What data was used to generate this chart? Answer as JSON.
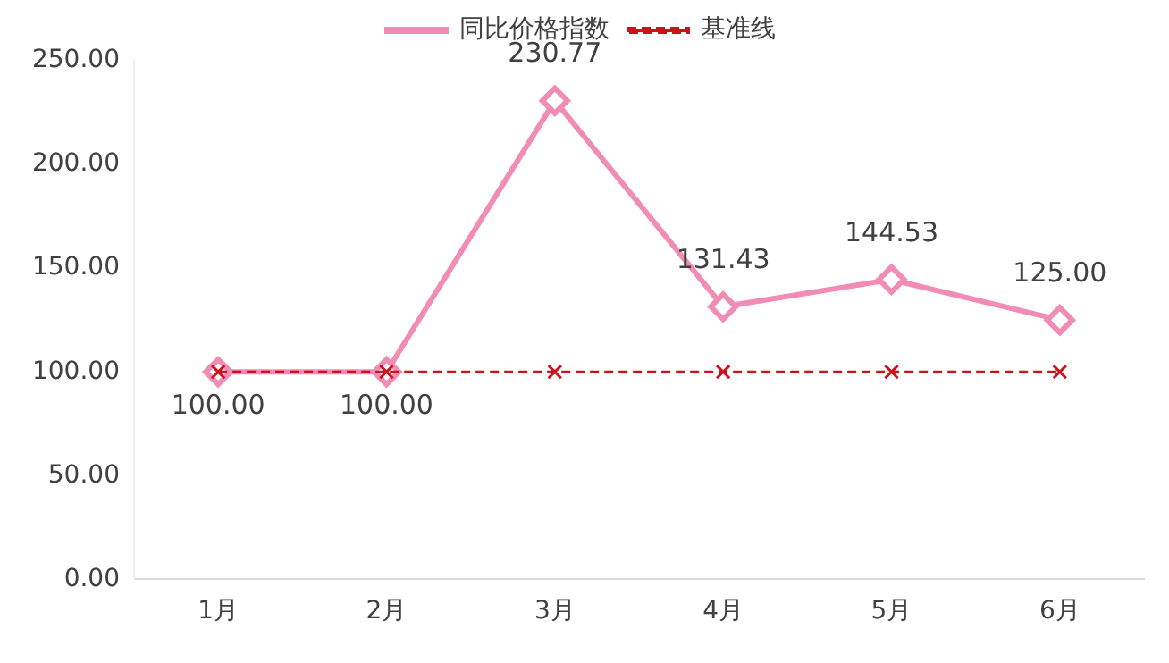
{
  "chart_data": {
    "type": "line",
    "categories": [
      "1月",
      "2月",
      "3月",
      "4月",
      "5月",
      "6月"
    ],
    "series": [
      {
        "name": "同比价格指数",
        "color": "#f08cb6",
        "marker": "diamond",
        "line_style": "solid",
        "values": [
          100,
          100,
          230.77,
          131.43,
          144.53,
          125
        ],
        "value_labels": [
          "100.00",
          "100.00",
          "230.77",
          "131.43",
          "144.53",
          "125.00"
        ]
      },
      {
        "name": "基准线",
        "color": "#d0101b",
        "marker": "cross",
        "line_style": "dashed",
        "values": [
          100,
          100,
          100,
          100,
          100,
          100
        ]
      }
    ],
    "ylim": [
      0,
      250
    ],
    "yticks": [
      {
        "value": 0,
        "label": "0.00"
      },
      {
        "value": 50,
        "label": "50.00"
      },
      {
        "value": 100,
        "label": "100.00"
      },
      {
        "value": 150,
        "label": "150.00"
      },
      {
        "value": 200,
        "label": "200.00"
      },
      {
        "value": 250,
        "label": "250.00"
      }
    ],
    "grid": false,
    "legend": "top"
  }
}
